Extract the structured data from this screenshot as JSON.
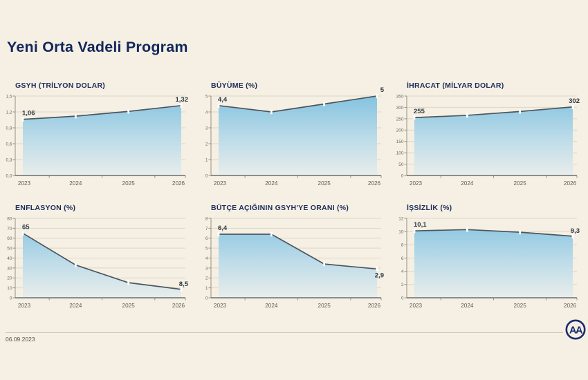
{
  "page": {
    "title": "Yeni Orta Vadeli Program",
    "date": "06.09.2023",
    "logo_text": "AA"
  },
  "colors": {
    "background": "#f5f0e3",
    "title": "#13265c",
    "chart_title": "#1c2c5a",
    "line": "#4b565e",
    "fill_top": "#84c3e0",
    "fill_mid": "#bedce9",
    "fill_bottom": "#e9edea",
    "axis": "#97917f",
    "grid": "#ddd6c5",
    "tick_label": "#6e6a64",
    "year_label": "#5f5b55",
    "value_label": "#2d3844",
    "point_marker": "#ffffff",
    "divider": "#cbc4b2",
    "logo": "#1b2a70"
  },
  "chart_data": [
    {
      "type": "area",
      "title": "GSYH (TRİLYON DOLAR)",
      "x": [
        "2023",
        "2024",
        "2025",
        "2026"
      ],
      "values": [
        1.06,
        1.12,
        1.21,
        1.32
      ],
      "ylim": [
        0,
        1.5
      ],
      "yticks": [
        "0,0",
        "0,3",
        "0,6",
        "0,9",
        "1,2",
        "1,5"
      ],
      "start_label": "1,06",
      "end_label": "1,32",
      "grid": "on",
      "legend": "none"
    },
    {
      "type": "area",
      "title": "BÜYÜME (%)",
      "x": [
        "2023",
        "2024",
        "2025",
        "2026"
      ],
      "values": [
        4.4,
        4.0,
        4.5,
        5.0
      ],
      "ylim": [
        0,
        5
      ],
      "yticks": [
        "0",
        "1",
        "2",
        "3",
        "4",
        "5"
      ],
      "start_label": "4,4",
      "end_label": "5",
      "grid": "on",
      "legend": "none"
    },
    {
      "type": "area",
      "title": "İHRACAT (MİLYAR DOLAR)",
      "x": [
        "2023",
        "2024",
        "2025",
        "2026"
      ],
      "values": [
        255,
        265,
        282,
        302
      ],
      "ylim": [
        0,
        350
      ],
      "yticks": [
        "0",
        "50",
        "100",
        "150",
        "200",
        "250",
        "300",
        "350"
      ],
      "start_label": "255",
      "end_label": "302",
      "grid": "on",
      "legend": "none"
    },
    {
      "type": "area",
      "title": "ENFLASYON (%)",
      "x": [
        "2023",
        "2024",
        "2025",
        "2026"
      ],
      "values": [
        65,
        33,
        15.2,
        8.5
      ],
      "ylim": [
        0,
        80
      ],
      "yticks": [
        "0",
        "10",
        "20",
        "30",
        "40",
        "50",
        "60",
        "70",
        "80"
      ],
      "start_label": "65",
      "end_label": "8,5",
      "grid": "on",
      "legend": "none"
    },
    {
      "type": "area",
      "title": "BÜTÇE AÇIĞININ GSYH'YE ORANI (%)",
      "x": [
        "2023",
        "2024",
        "2025",
        "2026"
      ],
      "values": [
        6.4,
        6.4,
        3.4,
        2.9
      ],
      "ylim": [
        0,
        8
      ],
      "yticks": [
        "0",
        "1",
        "2",
        "3",
        "4",
        "5",
        "6",
        "7",
        "8"
      ],
      "start_label": "6,4",
      "end_label": "2,9",
      "grid": "on",
      "legend": "none"
    },
    {
      "type": "area",
      "title": "İŞSİZLİK (%)",
      "x": [
        "2023",
        "2024",
        "2025",
        "2026"
      ],
      "values": [
        10.1,
        10.3,
        9.9,
        9.3
      ],
      "ylim": [
        0,
        12
      ],
      "yticks": [
        "0",
        "2",
        "4",
        "6",
        "8",
        "10",
        "12"
      ],
      "start_label": "10,1",
      "end_label": "9,3",
      "grid": "on",
      "legend": "none"
    }
  ]
}
